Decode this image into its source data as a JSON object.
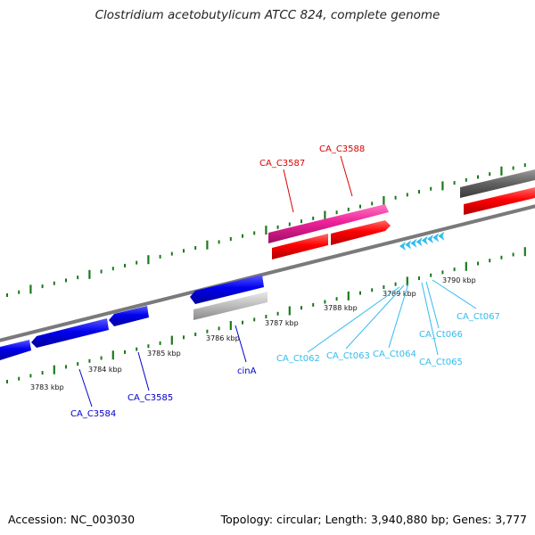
{
  "title": "Clostridium acetobutylicum ATCC 824, complete genome",
  "footer": {
    "accession": "Accession: NC_003030",
    "topology": "Topology: circular; Length: 3,940,880 bp; Genes: 3,777"
  },
  "ticks": {
    "unit": "kbp",
    "labels": [
      "3783 kbp",
      "3784 kbp",
      "3785 kbp",
      "3786 kbp",
      "3787 kbp",
      "3788 kbp",
      "3789 kbp",
      "3790 kbp"
    ]
  },
  "genes": [
    {
      "label": "CA_C3584",
      "color": "#0000cc"
    },
    {
      "label": "CA_C3585",
      "color": "#0000cc"
    },
    {
      "label": "cinA",
      "color": "#0000cc"
    },
    {
      "label": "CA_C3587",
      "color": "#dd0000"
    },
    {
      "label": "CA_C3588",
      "color": "#dd0000"
    },
    {
      "label": "CA_Ct062",
      "color": "#33bbee"
    },
    {
      "label": "CA_Ct063",
      "color": "#33bbee"
    },
    {
      "label": "CA_Ct064",
      "color": "#33bbee"
    },
    {
      "label": "CA_Ct065",
      "color": "#33bbee"
    },
    {
      "label": "CA_Ct066",
      "color": "#33bbee"
    },
    {
      "label": "CA_Ct067",
      "color": "#33bbee"
    }
  ],
  "colors": {
    "backbone": "#808080",
    "tick": "#1a7a1a",
    "forward_gene": "#ff0000",
    "forward_highlight": "#ee2299",
    "reverse_gene": "#0000ee",
    "other_gene": "#bbbbbb",
    "dark_gene": "#606060",
    "trna": "#33bbee"
  }
}
